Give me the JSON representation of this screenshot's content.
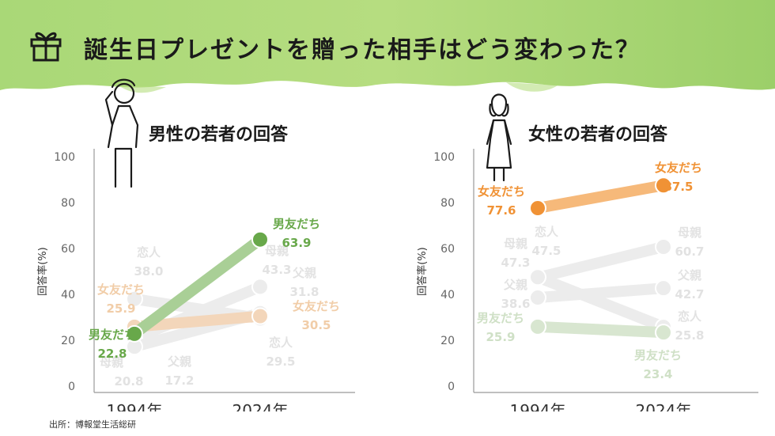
{
  "title": "誕生日プレゼントを贈った相手はどう変わった？",
  "icons": [
    "gift-icon",
    "male-figure-icon",
    "female-figure-icon"
  ],
  "colors": {
    "green": "#68a84a",
    "orange": "#f09235",
    "paleOrange": "#f3d6ba",
    "paleGray": "#ececec",
    "paleGreen": "#d8e6d0",
    "banner": "#9fd36a"
  },
  "source": "出所：博報堂生活総研",
  "chart_data": [
    {
      "type": "line",
      "title": "男性の若者の回答",
      "ylabel": "回答率(%)",
      "x": [
        "1994年",
        "2024年"
      ],
      "ylim": [
        0,
        100
      ],
      "yticks": [
        "0",
        "20",
        "40",
        "60",
        "80",
        "100"
      ],
      "series": [
        {
          "name": "恋人",
          "values": [
            38.0,
            29.5
          ],
          "labels": [
            "38.0",
            "29.5"
          ],
          "style": "gray",
          "highlight": false
        },
        {
          "name": "母親",
          "values": [
            20.8,
            43.3
          ],
          "labels": [
            "20.8",
            "43.3"
          ],
          "style": "gray",
          "highlight": false
        },
        {
          "name": "父親",
          "values": [
            17.2,
            31.8
          ],
          "labels": [
            "17.2",
            "31.8"
          ],
          "style": "gray",
          "highlight": false
        },
        {
          "name": "女友だち",
          "values": [
            25.9,
            30.5
          ],
          "labels": [
            "25.9",
            "30.5"
          ],
          "style": "paleOrange",
          "highlight": false
        },
        {
          "name": "男友だち",
          "values": [
            22.8,
            63.9
          ],
          "labels": [
            "22.8",
            "63.9"
          ],
          "style": "green",
          "highlight": true
        }
      ]
    },
    {
      "type": "line",
      "title": "女性の若者の回答",
      "ylabel": "回答率(%)",
      "x": [
        "1994年",
        "2024年"
      ],
      "ylim": [
        0,
        100
      ],
      "yticks": [
        "0",
        "20",
        "40",
        "60",
        "80",
        "100"
      ],
      "series": [
        {
          "name": "母親",
          "values": [
            47.3,
            60.7
          ],
          "labels": [
            "47.3",
            "60.7"
          ],
          "style": "gray",
          "highlight": false
        },
        {
          "name": "恋人",
          "values": [
            47.5,
            25.8
          ],
          "labels": [
            "47.5",
            "25.8"
          ],
          "style": "gray",
          "highlight": false
        },
        {
          "name": "父親",
          "values": [
            38.6,
            42.7
          ],
          "labels": [
            "38.6",
            "42.7"
          ],
          "style": "gray",
          "highlight": false
        },
        {
          "name": "男友だち",
          "values": [
            25.9,
            23.4
          ],
          "labels": [
            "25.9",
            "23.4"
          ],
          "style": "paleGreen",
          "highlight": false
        },
        {
          "name": "女友だち",
          "values": [
            77.6,
            87.5
          ],
          "labels": [
            "77.6",
            "87.5"
          ],
          "style": "orange",
          "highlight": true
        }
      ]
    }
  ]
}
